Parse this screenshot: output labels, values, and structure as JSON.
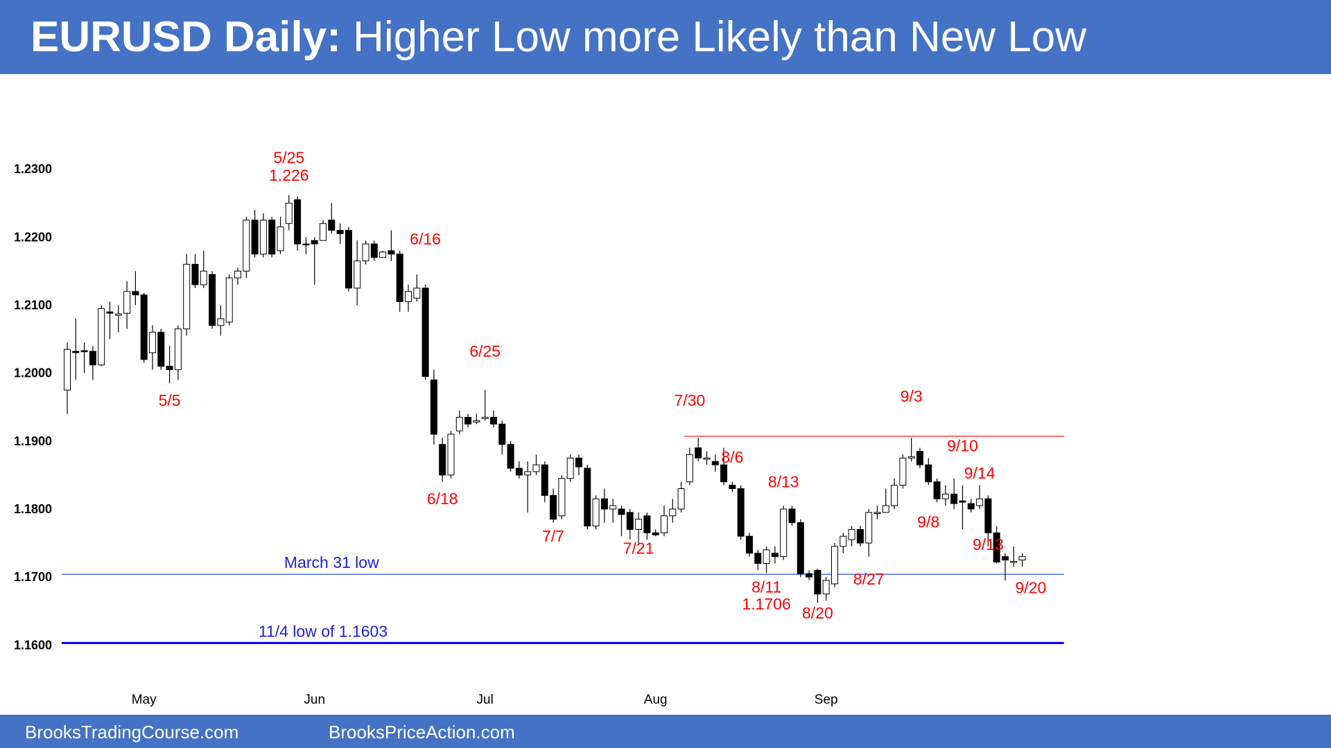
{
  "header": {
    "title_bold": "EURUSD Daily:",
    "title_rest": "Higher Low more Likely than New Low"
  },
  "footer": {
    "left": "BrooksTradingCourse.com",
    "right": "BrooksPriceAction.com"
  },
  "colors": {
    "banner": "#4472c4",
    "annotation": "#ff0000",
    "support_line": "#4d6fe0",
    "level_line": "#0000ff",
    "resistance_line": "#ff6b6b",
    "bull_candle": "#ffffff",
    "bear_candle": "#000000"
  },
  "chart_data": {
    "type": "candlestick",
    "title": "EURUSD Daily: Higher Low more Likely than New Low",
    "ylim": [
      1.1585,
      1.2345
    ],
    "yticks": [
      "1.2300",
      "1.2200",
      "1.2100",
      "1.2000",
      "1.1900",
      "1.1800",
      "1.1700",
      "1.1600"
    ],
    "xticks": [
      {
        "label": "May",
        "index": 9
      },
      {
        "label": "Jun",
        "index": 29
      },
      {
        "label": "Jul",
        "index": 49
      },
      {
        "label": "Aug",
        "index": 69
      },
      {
        "label": "Sep",
        "index": 89
      }
    ],
    "grid": false,
    "candles": [
      [
        1.1975,
        1.2035,
        1.2045,
        1.194
      ],
      [
        1.2032,
        1.203,
        1.208,
        1.199
      ],
      [
        1.2033,
        1.2032,
        1.2045,
        1.2
      ],
      [
        1.2032,
        1.2012,
        1.204,
        1.199
      ],
      [
        1.2012,
        1.2095,
        1.21,
        1.201
      ],
      [
        1.209,
        1.2088,
        1.2105,
        1.205
      ],
      [
        1.2085,
        1.2087,
        1.21,
        1.206
      ],
      [
        1.2088,
        1.212,
        1.2135,
        1.2065
      ],
      [
        1.212,
        1.2115,
        1.215,
        1.21
      ],
      [
        1.2115,
        1.202,
        1.2118,
        1.2015
      ],
      [
        1.203,
        1.206,
        1.207,
        1.2005
      ],
      [
        1.206,
        1.201,
        1.2065,
        1.2005
      ],
      [
        1.201,
        1.2005,
        1.204,
        1.1985
      ],
      [
        1.2005,
        1.2065,
        1.207,
        1.199
      ],
      [
        1.2065,
        1.216,
        1.2175,
        1.2055
      ],
      [
        1.216,
        1.213,
        1.2175,
        1.2125
      ],
      [
        1.213,
        1.215,
        1.218,
        1.2125
      ],
      [
        1.2145,
        1.207,
        1.215,
        1.2065
      ],
      [
        1.207,
        1.208,
        1.21,
        1.2055
      ],
      [
        1.2075,
        1.214,
        1.2145,
        1.207
      ],
      [
        1.214,
        1.215,
        1.2155,
        1.213
      ],
      [
        1.215,
        1.2225,
        1.223,
        1.214
      ],
      [
        1.2225,
        1.2175,
        1.224,
        1.217
      ],
      [
        1.2175,
        1.2225,
        1.2235,
        1.217
      ],
      [
        1.2225,
        1.2175,
        1.223,
        1.217
      ],
      [
        1.218,
        1.2215,
        1.223,
        1.2175
      ],
      [
        1.222,
        1.225,
        1.2262,
        1.221
      ],
      [
        1.2255,
        1.219,
        1.226,
        1.218
      ],
      [
        1.219,
        1.2189,
        1.22,
        1.2175
      ],
      [
        1.2195,
        1.219,
        1.22,
        1.213
      ],
      [
        1.2195,
        1.222,
        1.2225,
        1.2195
      ],
      [
        1.2225,
        1.221,
        1.225,
        1.2205
      ],
      [
        1.221,
        1.2205,
        1.222,
        1.219
      ],
      [
        1.221,
        1.2125,
        1.2215,
        1.212
      ],
      [
        1.2125,
        1.2165,
        1.2195,
        1.21
      ],
      [
        1.2165,
        1.219,
        1.2195,
        1.216
      ],
      [
        1.219,
        1.217,
        1.2195,
        1.2165
      ],
      [
        1.217,
        1.2178,
        1.218,
        1.217
      ],
      [
        1.218,
        1.2175,
        1.221,
        1.2165
      ],
      [
        1.2175,
        1.2105,
        1.218,
        1.209
      ],
      [
        1.2105,
        1.212,
        1.213,
        1.209
      ],
      [
        1.211,
        1.2125,
        1.2145,
        1.2105
      ],
      [
        1.2125,
        1.1995,
        1.213,
        1.199
      ],
      [
        1.199,
        1.191,
        1.2005,
        1.1895
      ],
      [
        1.1895,
        1.185,
        1.1905,
        1.184
      ],
      [
        1.185,
        1.191,
        1.1915,
        1.1845
      ],
      [
        1.1915,
        1.1935,
        1.1945,
        1.191
      ],
      [
        1.1935,
        1.1925,
        1.194,
        1.192
      ],
      [
        1.1928,
        1.193,
        1.194,
        1.1925
      ],
      [
        1.1933,
        1.1935,
        1.1975,
        1.193
      ],
      [
        1.1935,
        1.1925,
        1.1945,
        1.192
      ],
      [
        1.1925,
        1.1895,
        1.193,
        1.188
      ],
      [
        1.1895,
        1.186,
        1.19,
        1.1855
      ],
      [
        1.186,
        1.185,
        1.187,
        1.1845
      ],
      [
        1.185,
        1.1855,
        1.187,
        1.1795
      ],
      [
        1.1855,
        1.1865,
        1.188,
        1.185
      ],
      [
        1.1865,
        1.182,
        1.187,
        1.181
      ],
      [
        1.182,
        1.1785,
        1.183,
        1.178
      ],
      [
        1.179,
        1.1845,
        1.185,
        1.1785
      ],
      [
        1.1845,
        1.1875,
        1.188,
        1.184
      ],
      [
        1.1875,
        1.1862,
        1.188,
        1.185
      ],
      [
        1.186,
        1.1775,
        1.1865,
        1.177
      ],
      [
        1.1775,
        1.1815,
        1.182,
        1.177
      ],
      [
        1.1815,
        1.18,
        1.183,
        1.178
      ],
      [
        1.18,
        1.1805,
        1.1815,
        1.178
      ],
      [
        1.18,
        1.1792,
        1.1805,
        1.176
      ],
      [
        1.1795,
        1.177,
        1.18,
        1.1755
      ],
      [
        1.177,
        1.1785,
        1.1795,
        1.175
      ],
      [
        1.179,
        1.1765,
        1.1795,
        1.1755
      ],
      [
        1.1765,
        1.1762,
        1.177,
        1.176
      ],
      [
        1.1765,
        1.179,
        1.1805,
        1.176
      ],
      [
        1.179,
        1.18,
        1.1815,
        1.178
      ],
      [
        1.18,
        1.183,
        1.184,
        1.1795
      ],
      [
        1.184,
        1.188,
        1.189,
        1.1835
      ],
      [
        1.189,
        1.1875,
        1.1905,
        1.187
      ],
      [
        1.1875,
        1.1875,
        1.1885,
        1.1865
      ],
      [
        1.187,
        1.1865,
        1.188,
        1.1855
      ],
      [
        1.1865,
        1.184,
        1.189,
        1.1835
      ],
      [
        1.1835,
        1.183,
        1.184,
        1.1825
      ],
      [
        1.183,
        1.176,
        1.1835,
        1.1755
      ],
      [
        1.176,
        1.1735,
        1.1765,
        1.173
      ],
      [
        1.1735,
        1.172,
        1.174,
        1.171
      ],
      [
        1.172,
        1.174,
        1.1745,
        1.1706
      ],
      [
        1.1735,
        1.173,
        1.1745,
        1.172
      ],
      [
        1.173,
        1.18,
        1.1805,
        1.1725
      ],
      [
        1.18,
        1.178,
        1.1805,
        1.1775
      ],
      [
        1.178,
        1.1705,
        1.1785,
        1.17
      ],
      [
        1.1705,
        1.17,
        1.171,
        1.1695
      ],
      [
        1.171,
        1.1675,
        1.1712,
        1.1662
      ],
      [
        1.1675,
        1.1695,
        1.17,
        1.1665
      ],
      [
        1.169,
        1.1745,
        1.175,
        1.1685
      ],
      [
        1.1745,
        1.176,
        1.1765,
        1.1735
      ],
      [
        1.1755,
        1.177,
        1.1775,
        1.1745
      ],
      [
        1.177,
        1.175,
        1.1775,
        1.1745
      ],
      [
        1.175,
        1.1795,
        1.18,
        1.173
      ],
      [
        1.1795,
        1.1795,
        1.1805,
        1.1785
      ],
      [
        1.1795,
        1.1805,
        1.183,
        1.1795
      ],
      [
        1.1805,
        1.1835,
        1.1845,
        1.18
      ],
      [
        1.1835,
        1.1875,
        1.188,
        1.183
      ],
      [
        1.1875,
        1.1877,
        1.1905,
        1.187
      ],
      [
        1.1885,
        1.1865,
        1.189,
        1.186
      ],
      [
        1.1865,
        1.184,
        1.1875,
        1.1835
      ],
      [
        1.184,
        1.1815,
        1.1845,
        1.181
      ],
      [
        1.1815,
        1.1822,
        1.1835,
        1.1805
      ],
      [
        1.1822,
        1.1808,
        1.1845,
        1.18
      ],
      [
        1.1812,
        1.181,
        1.1835,
        1.177
      ],
      [
        1.1808,
        1.18,
        1.1815,
        1.1795
      ],
      [
        1.1805,
        1.1815,
        1.1835,
        1.18
      ],
      [
        1.1815,
        1.1765,
        1.182,
        1.1745
      ],
      [
        1.1765,
        1.1722,
        1.1775,
        1.172
      ],
      [
        1.173,
        1.1725,
        1.1735,
        1.1695
      ],
      [
        1.1722,
        1.1723,
        1.1745,
        1.1715
      ],
      [
        1.1725,
        1.173,
        1.1735,
        1.1715
      ]
    ],
    "lines": [
      {
        "label": "March 31 low",
        "y": 1.1704,
        "from": 0,
        "to": 116,
        "color": "#4d6fe0",
        "width": 1.5
      },
      {
        "label": "11/4 low of 1.1603",
        "y": 1.1603,
        "from": 0,
        "to": 116,
        "color": "#0000ff",
        "width": 3
      },
      {
        "label": "",
        "y": 1.1907,
        "from": 73,
        "to": 116,
        "color": "#ff6b6b",
        "width": 2
      }
    ],
    "annotations": [
      {
        "text": "5/25",
        "index": 26,
        "y": 1.2309
      },
      {
        "text": "1.226",
        "index": 26,
        "y": 1.2283
      },
      {
        "text": "5/5",
        "index": 12,
        "y": 1.1952
      },
      {
        "text": "6/16",
        "index": 42,
        "y": 1.2189
      },
      {
        "text": "6/25",
        "index": 49,
        "y": 1.2024
      },
      {
        "text": "6/18",
        "index": 44,
        "y": 1.1807
      },
      {
        "text": "7/7",
        "index": 57,
        "y": 1.1752
      },
      {
        "text": "7/21",
        "index": 67,
        "y": 1.1734
      },
      {
        "text": "7/30",
        "index": 73,
        "y": 1.1952
      },
      {
        "text": "8/6",
        "index": 78,
        "y": 1.1868
      },
      {
        "text": "8/13",
        "index": 84,
        "y": 1.1832
      },
      {
        "text": "8/11",
        "index": 82,
        "y": 1.1677
      },
      {
        "text": "1.1706",
        "index": 82,
        "y": 1.1652
      },
      {
        "text": "8/20",
        "index": 88,
        "y": 1.1639
      },
      {
        "text": "8/27",
        "index": 94,
        "y": 1.1689
      },
      {
        "text": "9/3",
        "index": 99,
        "y": 1.1958
      },
      {
        "text": "9/10",
        "index": 105,
        "y": 1.1885
      },
      {
        "text": "9/14",
        "index": 107,
        "y": 1.1845
      },
      {
        "text": "9/8",
        "index": 101,
        "y": 1.1773
      },
      {
        "text": "9/13",
        "index": 108,
        "y": 1.174
      },
      {
        "text": "9/20",
        "index": 113,
        "y": 1.1676
      }
    ]
  }
}
